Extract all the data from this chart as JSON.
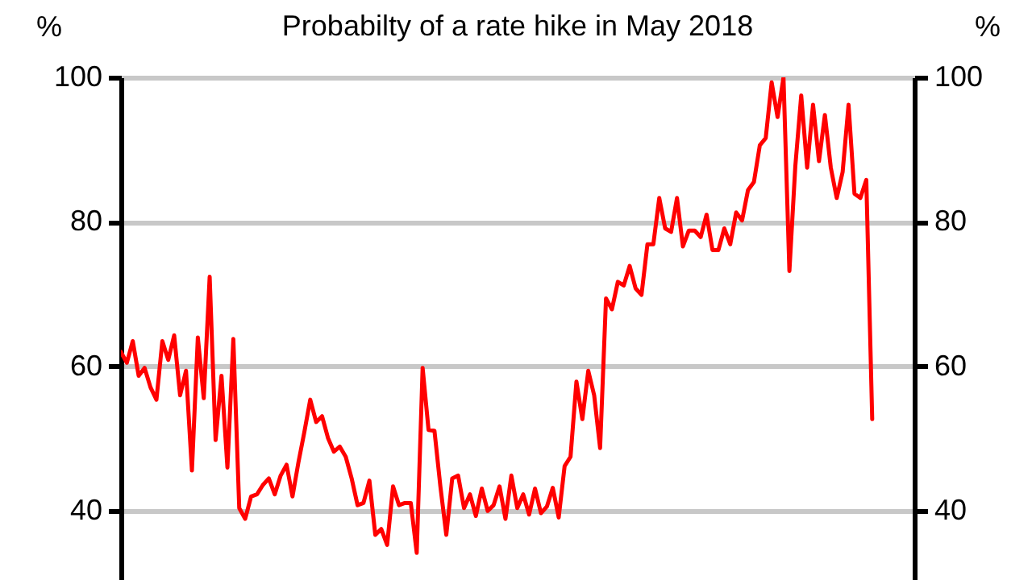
{
  "chart_data": {
    "type": "line",
    "title": "Probabilty of a rate hike in May 2018",
    "ylabel": "%",
    "y2label": "%",
    "series": [
      {
        "color": "#ff0000",
        "values": [
          62.0,
          60.5,
          63.5,
          58.7,
          59.8,
          57.1,
          55.4,
          63.5,
          60.9,
          64.3,
          56.0,
          59.4,
          45.6,
          64.0,
          55.6,
          72.4,
          49.8,
          58.7,
          46.0,
          63.8,
          40.4,
          38.9,
          42.0,
          42.3,
          43.6,
          44.5,
          42.3,
          44.9,
          46.4,
          42.0,
          46.7,
          50.9,
          55.4,
          52.3,
          53.1,
          50.1,
          48.2,
          48.9,
          47.5,
          44.5,
          40.8,
          41.1,
          44.2,
          36.7,
          37.5,
          35.3,
          43.4,
          40.8,
          41.1,
          41.1,
          34.2,
          59.8,
          51.2,
          51.1,
          43.4,
          36.7,
          44.5,
          44.9,
          40.4,
          42.3,
          39.3,
          43.1,
          40.0,
          40.8,
          43.4,
          38.9,
          44.9,
          40.4,
          42.3,
          39.5,
          43.1,
          39.7,
          40.6,
          43.2,
          39.1,
          46.2,
          47.5,
          57.9,
          52.7,
          59.4,
          56.0,
          48.7,
          69.4,
          67.9,
          71.7,
          71.2,
          73.9,
          70.8,
          69.9,
          76.9,
          76.9,
          83.3,
          79.1,
          78.6,
          83.3,
          76.6,
          78.8,
          78.8,
          77.9,
          81.0,
          76.1,
          76.1,
          79.1,
          76.9,
          81.3,
          80.2,
          84.4,
          85.5,
          90.6,
          91.6,
          99.3,
          94.5,
          100,
          73.2,
          87.7,
          97.5,
          87.5,
          96.2,
          88.4,
          94.8,
          87.5,
          83.3,
          86.9,
          96.2,
          83.9,
          83.3,
          85.8,
          52.7
        ]
      }
    ],
    "categories": [
      null,
      null,
      null,
      null,
      null,
      null,
      null,
      null,
      null,
      null,
      null,
      null,
      null,
      null,
      null,
      null,
      null,
      null,
      null,
      null,
      null,
      null,
      null,
      null,
      null,
      null,
      null,
      null,
      null,
      null,
      null,
      null,
      null,
      null,
      null,
      null,
      null,
      null,
      null,
      null,
      null,
      null,
      null,
      null,
      null,
      null,
      null,
      null,
      null,
      null,
      null,
      null,
      null,
      null,
      null,
      null,
      null,
      null,
      null,
      null,
      null,
      null,
      null,
      null,
      null,
      null,
      null,
      null,
      null,
      null,
      null,
      null,
      null,
      null,
      null,
      null,
      null,
      null,
      null,
      null,
      null,
      null,
      null,
      null,
      null,
      null,
      null,
      null,
      null,
      null,
      null,
      null,
      null,
      null,
      null,
      null,
      null,
      null,
      null,
      null,
      null,
      null,
      null,
      null,
      null,
      null,
      null,
      null,
      null,
      null,
      null,
      null,
      null,
      null,
      null,
      null,
      null,
      null,
      null,
      null,
      null,
      null,
      null,
      null,
      null,
      null,
      null,
      null
    ],
    "ylim": [
      30,
      100
    ],
    "yticks": [
      40,
      60,
      80,
      100
    ],
    "y2lim": [
      30,
      100
    ],
    "y2ticks": [
      40,
      60,
      80,
      100
    ],
    "grid": "y",
    "tick_labels": "y"
  }
}
